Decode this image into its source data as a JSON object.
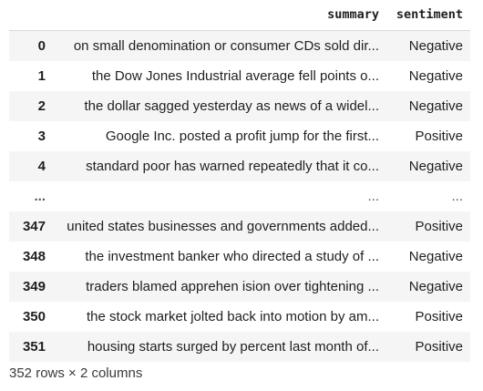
{
  "dataframe": {
    "columns": {
      "index_header": "",
      "summary": "summary",
      "sentiment": "sentiment"
    },
    "rows": [
      {
        "index": "0",
        "summary": "on small denomination or consumer CDs sold dir...",
        "sentiment": "Negative"
      },
      {
        "index": "1",
        "summary": "the Dow Jones Industrial average fell points o...",
        "sentiment": "Negative"
      },
      {
        "index": "2",
        "summary": "the dollar sagged yesterday as news of a widel...",
        "sentiment": "Negative"
      },
      {
        "index": "3",
        "summary": "Google Inc. posted a profit jump for the first...",
        "sentiment": "Positive"
      },
      {
        "index": "4",
        "summary": "standard poor has warned repeatedly that it co...",
        "sentiment": "Negative"
      },
      {
        "index": "...",
        "summary": "...",
        "sentiment": "..."
      },
      {
        "index": "347",
        "summary": "united states businesses and governments added...",
        "sentiment": "Positive"
      },
      {
        "index": "348",
        "summary": "the investment banker who directed a study of ...",
        "sentiment": "Negative"
      },
      {
        "index": "349",
        "summary": "traders blamed apprehen ision over tightening ...",
        "sentiment": "Negative"
      },
      {
        "index": "350",
        "summary": "the stock market jolted back into motion by am...",
        "sentiment": "Positive"
      },
      {
        "index": "351",
        "summary": "housing starts surged by percent last month of...",
        "sentiment": "Positive"
      }
    ],
    "shape_text": "352 rows × 2 columns"
  }
}
